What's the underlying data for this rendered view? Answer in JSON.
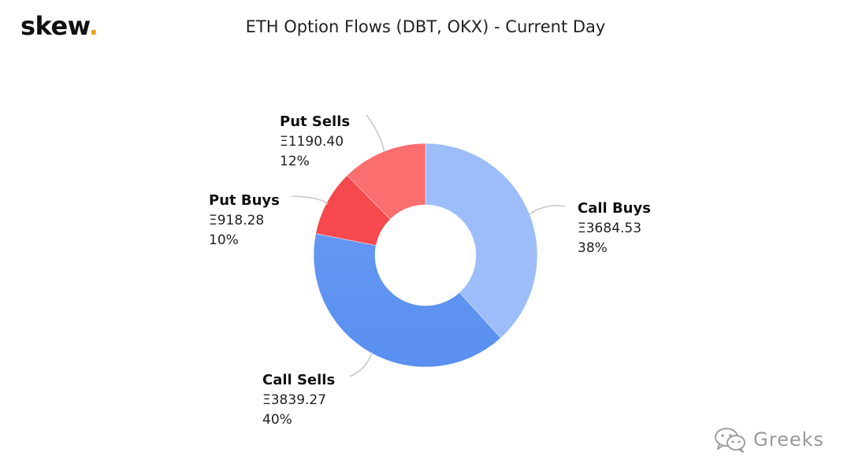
{
  "logo": {
    "text": "skew",
    "dot": "."
  },
  "chart_data": {
    "type": "pie",
    "title": "ETH Option Flows (DBT, OKX) - Current Day",
    "donut": true,
    "slices": [
      {
        "label": "Call Buys",
        "value_text": "Ξ3684.53",
        "value": 3684.53,
        "pct_text": "38%",
        "color": "#9dbdfa"
      },
      {
        "label": "Call Sells",
        "value_text": "Ξ3839.27",
        "value": 3839.27,
        "pct_text": "40%",
        "color": "#6397f2"
      },
      {
        "label": "Put Buys",
        "value_text": "Ξ918.28",
        "value": 918.28,
        "pct_text": "10%",
        "color": "#f5494d"
      },
      {
        "label": "Put Sells",
        "value_text": "Ξ1190.40",
        "value": 1190.4,
        "pct_text": "12%",
        "color": "#fa6e70"
      }
    ]
  },
  "watermark": {
    "text": "Greeks",
    "icon": "wechat-icon"
  }
}
